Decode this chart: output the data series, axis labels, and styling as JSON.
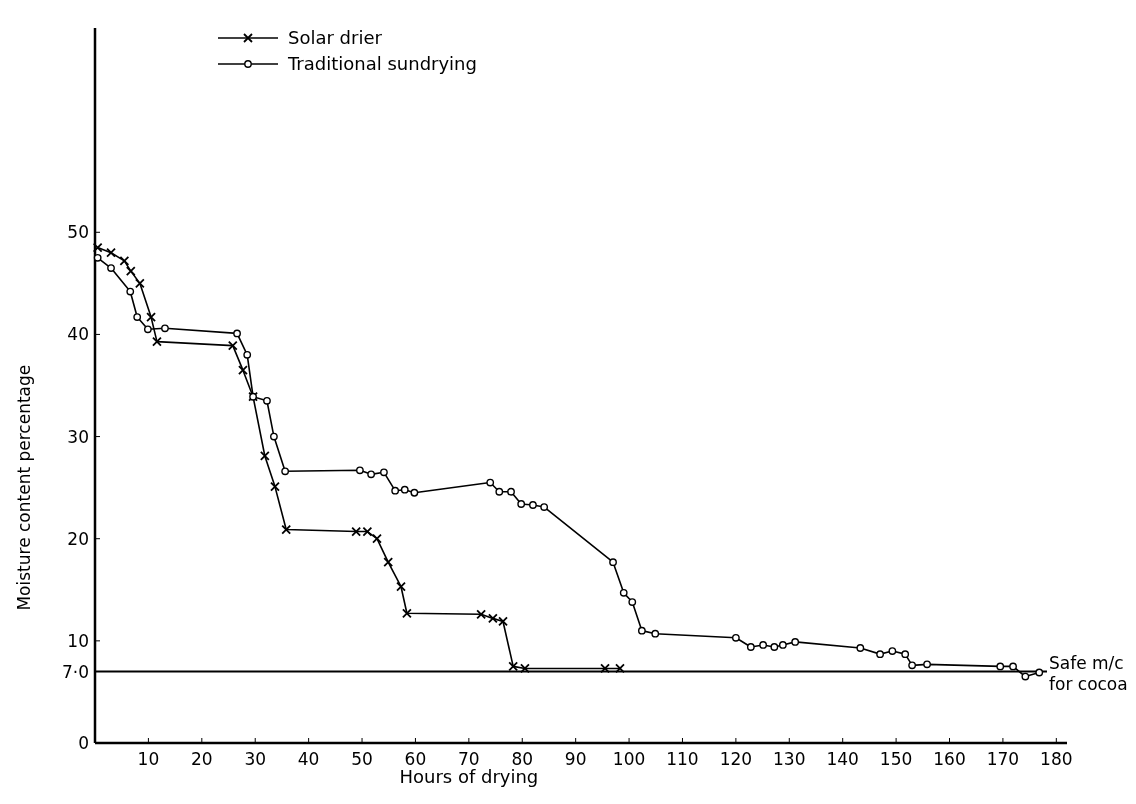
{
  "chart_data": {
    "type": "line",
    "xlabel": "Hours of drying",
    "ylabel": "Moisture content percentage",
    "xlim": [
      0,
      182
    ],
    "xticks": [
      10,
      20,
      30,
      40,
      50,
      60,
      70,
      80,
      90,
      100,
      110,
      120,
      130,
      140,
      150,
      160,
      170,
      180
    ],
    "ylim": [
      0,
      70
    ],
    "yticks": [
      0,
      {
        "value": 7,
        "label": "7·0"
      },
      10,
      20,
      30,
      40,
      50
    ],
    "grid": false,
    "legend": "top left",
    "line_style": "solid",
    "ref_lines": [
      {
        "axis": "y",
        "value": 7,
        "label": "Safe m/c for cocoa",
        "color": "#000000"
      }
    ],
    "series": [
      {
        "name": "Solar drier",
        "color": "#000000",
        "marker": "cross",
        "x": [
          0.5,
          3,
          5.5,
          6.7,
          8.4,
          10.5,
          11.6,
          25.8,
          27.7,
          29.6,
          31.8,
          33.7,
          35.8,
          48.9,
          51,
          52.8,
          54.9,
          57.3,
          58.4,
          72.3,
          74.5,
          76.4,
          78.3,
          80.5,
          95.5,
          98.3
        ],
        "values": [
          48.5,
          48,
          47.2,
          46.2,
          45,
          41.7,
          39.3,
          38.9,
          36.5,
          33.9,
          28.1,
          25.1,
          20.9,
          20.7,
          20.7,
          20,
          17.7,
          15.3,
          12.7,
          12.6,
          12.2,
          11.9,
          7.5,
          7.3,
          7.3,
          7.3
        ]
      },
      {
        "name": "Traditional sundrying",
        "color": "#000000",
        "marker": "circle",
        "x": [
          0.5,
          3,
          6.6,
          7.9,
          9.9,
          13.1,
          26.6,
          28.5,
          29.6,
          32.2,
          33.5,
          35.6,
          49.6,
          51.7,
          54.1,
          56.2,
          58,
          59.8,
          74,
          75.7,
          77.9,
          79.8,
          82,
          84.1,
          97,
          99,
          100.6,
          102.4,
          104.9,
          120,
          122.8,
          125.1,
          127.2,
          128.8,
          131.1,
          143.3,
          147,
          149.3,
          151.7,
          153,
          155.8,
          169.5,
          171.9,
          174.2,
          176.8
        ],
        "values": [
          47.5,
          46.5,
          44.2,
          41.7,
          40.5,
          40.6,
          40.1,
          38,
          33.9,
          33.5,
          30,
          26.6,
          26.7,
          26.3,
          26.5,
          24.7,
          24.8,
          24.5,
          25.5,
          24.6,
          24.6,
          23.4,
          23.3,
          23.1,
          17.7,
          14.7,
          13.8,
          11,
          10.7,
          10.3,
          9.4,
          9.6,
          9.4,
          9.6,
          9.9,
          9.3,
          8.7,
          9,
          8.7,
          7.6,
          7.7,
          7.5,
          7.5,
          6.5,
          6.9
        ]
      }
    ]
  }
}
